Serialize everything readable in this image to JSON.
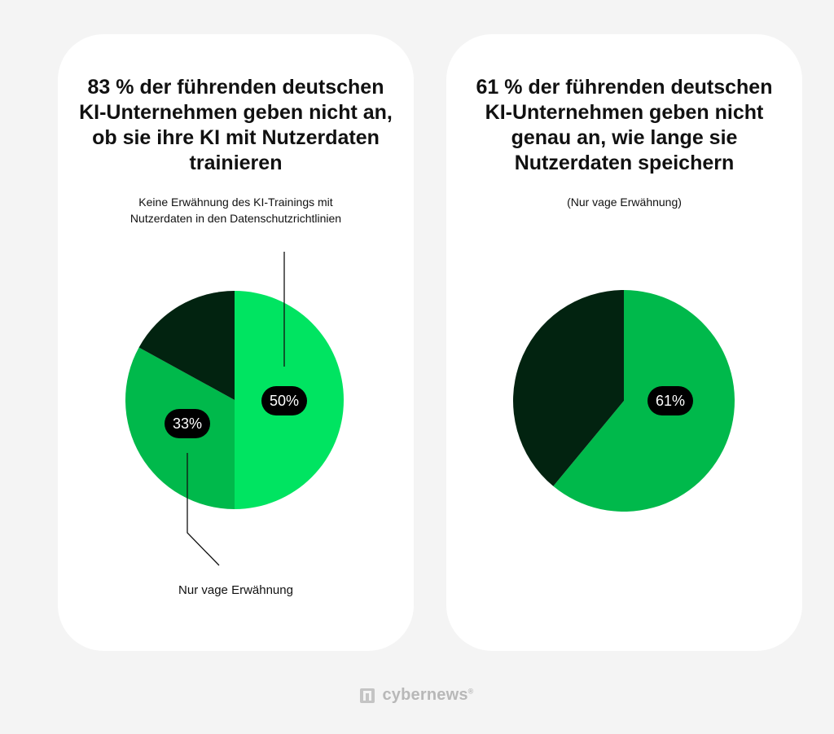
{
  "colors": {
    "bright_green": "#00e461",
    "mid_green": "#00b94b",
    "dark_green": "#022310",
    "label_bg": "#000000",
    "background": "#f4f4f4",
    "card": "#ffffff"
  },
  "chart_data": [
    {
      "type": "pie",
      "title": "83 % der führenden deutschen KI-Unternehmen geben nicht an, ob sie ihre KI mit Nutzerdaten trainieren",
      "title_lines": [
        "83 % der führenden deutschen",
        "KI-Unternehmen geben nicht an,",
        "ob sie ihre KI mit Nutzerdaten",
        "trainieren"
      ],
      "subtitle_lines": [
        "Keine Erwähnung des KI-Trainings mit",
        "Nutzerdaten in den Datenschutzrichtlinien"
      ],
      "bottom_note": "Nur vage Erwähnung",
      "slices": [
        {
          "label": "Keine Erwähnung des KI-Trainings mit Nutzerdaten in den Datenschutzrichtlinien",
          "value": 50,
          "value_label": "50%",
          "color": "#00e461"
        },
        {
          "label": "Nur vage Erwähnung",
          "value": 33,
          "value_label": "33%",
          "color": "#00b94b"
        },
        {
          "label": "",
          "value": 17,
          "value_label": "",
          "color": "#022310"
        }
      ]
    },
    {
      "type": "pie",
      "title": "61 % der führenden deutschen KI-Unternehmen geben nicht genau an, wie lange sie Nutzerdaten speichern",
      "title_lines": [
        "61 % der führenden deutschen",
        "KI-Unternehmen geben nicht",
        "genau an, wie lange sie",
        "Nutzerdaten speichern"
      ],
      "subtitle_lines": [
        "(Nur vage Erwähnung)"
      ],
      "slices": [
        {
          "label": "(Nur vage Erwähnung)",
          "value": 61,
          "value_label": "61%",
          "color": "#00b94b"
        },
        {
          "label": "",
          "value": 39,
          "value_label": "",
          "color": "#022310"
        }
      ]
    }
  ],
  "brand": {
    "name": "cybernews",
    "registered": "®",
    "icon": "cybernews-logo-icon"
  }
}
